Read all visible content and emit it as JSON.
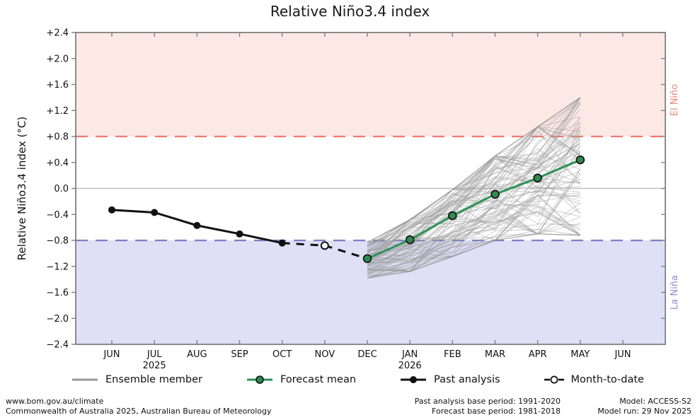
{
  "title": "Relative Niño3.4 index",
  "chart_data": {
    "type": "line",
    "title": "Relative Niño3.4 index",
    "xlabel": "",
    "ylabel": "Relative Niño3.4 index (°C)",
    "ylim": [
      -2.4,
      2.4
    ],
    "ytick_step": 0.4,
    "grid": "zero-line-only",
    "zero_line": 0.0,
    "x_categories": [
      "JUN",
      "JUL",
      "AUG",
      "SEP",
      "OCT",
      "NOV",
      "DEC",
      "JAN",
      "FEB",
      "MAR",
      "APR",
      "MAY",
      "JUN"
    ],
    "x_year_labels": [
      {
        "index": 1,
        "label": "2025"
      },
      {
        "index": 7,
        "label": "2026"
      }
    ],
    "thresholds": {
      "el_nino": 0.8,
      "la_nina": -0.8
    },
    "band_labels": {
      "top": "El Niño",
      "bottom": "La Niña"
    },
    "series": [
      {
        "name": "Past analysis",
        "style": "solid-black-dots",
        "x_indices": [
          0,
          1,
          2,
          3,
          4
        ],
        "values": [
          -0.33,
          -0.37,
          -0.57,
          -0.7,
          -0.84
        ]
      },
      {
        "name": "Month-to-date",
        "style": "dashed-black-open-dot",
        "x_indices": [
          5
        ],
        "values": [
          -0.88
        ]
      },
      {
        "name": "Forecast mean",
        "style": "solid-green-dots",
        "x_indices": [
          6,
          7,
          8,
          9,
          10,
          11
        ],
        "values": [
          -1.08,
          -0.79,
          -0.42,
          -0.09,
          0.16,
          0.44
        ]
      }
    ],
    "dashed_connector": {
      "x_indices": [
        4,
        5,
        6
      ],
      "values": [
        -0.84,
        -0.88,
        -1.08
      ]
    },
    "ensemble": {
      "name": "Ensemble member",
      "count": 99,
      "x_indices": [
        6,
        7,
        8,
        9,
        10,
        11
      ],
      "band_min": [
        -1.38,
        -1.28,
        -1.05,
        -0.8,
        -0.7,
        -0.72
      ],
      "band_max": [
        -0.83,
        -0.48,
        -0.02,
        0.5,
        0.95,
        1.4
      ]
    },
    "legend_position": "bottom"
  },
  "colors": {
    "el_nino_band": "#fce9e6",
    "la_nina_band": "#dfdff6",
    "el_nino_line": "#f5776e",
    "la_nina_line": "#7e7ec8",
    "el_nino_text": "#e8857a",
    "la_nina_text": "#8c8ccc",
    "forecast_green": "#2e9158",
    "forecast_marker": "#2e8b50",
    "past_black": "#111111",
    "ensemble_gray": "#999999",
    "zero_line": "#c0c0c0",
    "spine": "#808080"
  },
  "legend": {
    "items": [
      {
        "label": "Ensemble member",
        "type": "ensemble"
      },
      {
        "label": "Forecast mean",
        "type": "forecast"
      },
      {
        "label": "Past analysis",
        "type": "past"
      },
      {
        "label": "Month-to-date",
        "type": "mtd"
      }
    ]
  },
  "footer": {
    "left_line1": "www.bom.gov.au/climate",
    "left_line2": "Commonwealth of Australia 2025, Australian Bureau of Meteorology",
    "mid_line1": "Past analysis base period: 1991-2020",
    "mid_line2": "Forecast base period: 1981-2018",
    "right_line1": "Model: ACCESS-S2",
    "right_line2": "Model run: 29 Nov 2025"
  }
}
